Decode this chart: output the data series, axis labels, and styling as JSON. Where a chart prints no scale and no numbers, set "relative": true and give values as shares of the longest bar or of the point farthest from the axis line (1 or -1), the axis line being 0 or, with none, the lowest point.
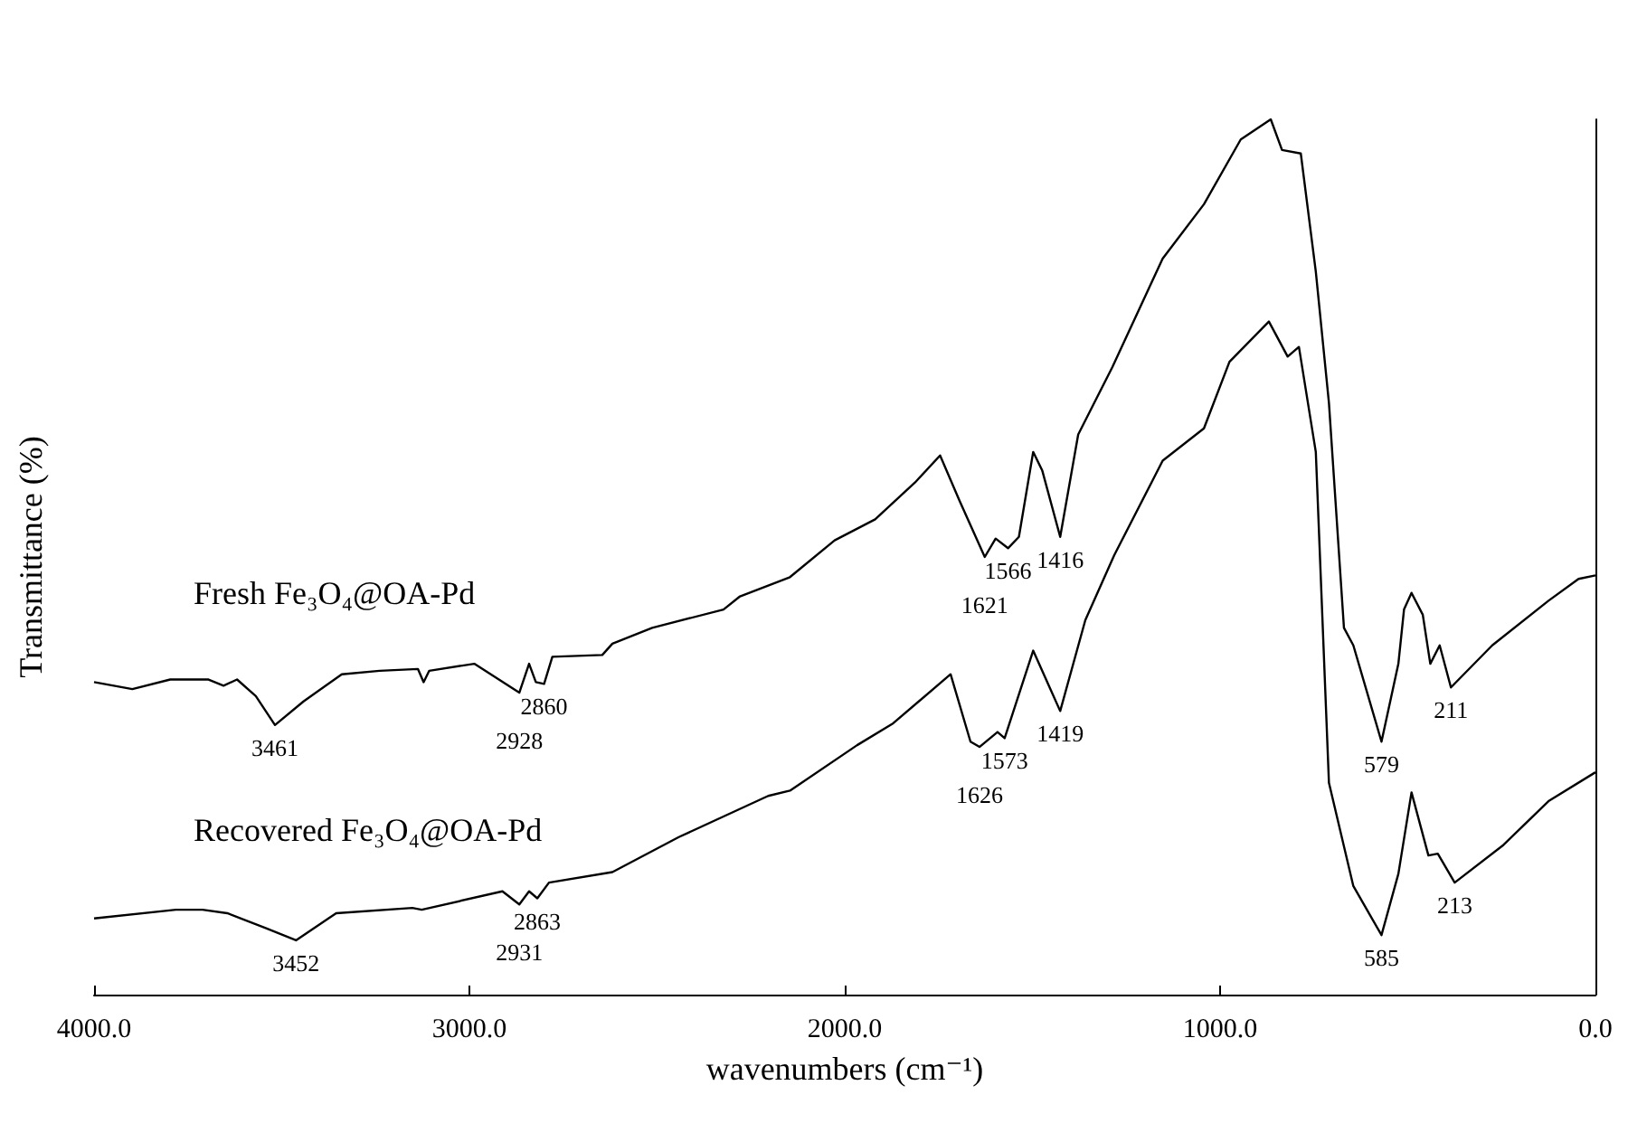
{
  "chart_data": {
    "type": "line",
    "relative": true,
    "xlabel": "wavenumbers (cm⁻¹)",
    "ylabel": "Transmittance (%)",
    "xlim": [
      4000,
      0
    ],
    "xticks": [
      {
        "value": 4000,
        "label": "4000.0"
      },
      {
        "value": 3000,
        "label": "3000.0"
      },
      {
        "value": 2000,
        "label": "2000.0"
      },
      {
        "value": 1000,
        "label": "1000.0"
      },
      {
        "value": 0,
        "label": "0.0"
      }
    ],
    "series": [
      {
        "name": "Fresh Fe₃O₄@OA-Pd",
        "color": "#000000",
        "x": [
          4000,
          3898,
          3797,
          3695,
          3655,
          3619,
          3569,
          3518,
          3442,
          3340,
          3239,
          3137,
          3122,
          3107,
          2987,
          2867,
          2841,
          2823,
          2801,
          2779,
          2646,
          2619,
          2513,
          2323,
          2279,
          2146,
          2027,
          1919,
          1813,
          1746,
          1694,
          1627,
          1598,
          1565,
          1536,
          1498,
          1474,
          1426,
          1378,
          1287,
          1153,
          1043,
          945,
          865,
          835,
          785,
          745,
          710,
          670,
          645,
          570,
          525,
          510,
          490,
          460,
          440,
          415,
          385,
          275,
          125,
          45,
          0
        ],
        "values": [
          0.357,
          0.349,
          0.36,
          0.36,
          0.353,
          0.36,
          0.341,
          0.308,
          0.335,
          0.366,
          0.37,
          0.372,
          0.357,
          0.37,
          0.378,
          0.345,
          0.378,
          0.357,
          0.355,
          0.386,
          0.388,
          0.401,
          0.419,
          0.44,
          0.455,
          0.477,
          0.519,
          0.543,
          0.585,
          0.616,
          0.564,
          0.5,
          0.521,
          0.51,
          0.523,
          0.62,
          0.599,
          0.523,
          0.64,
          0.717,
          0.841,
          0.903,
          0.977,
          1,
          0.965,
          0.961,
          0.826,
          0.676,
          0.419,
          0.399,
          0.289,
          0.378,
          0.44,
          0.459,
          0.434,
          0.378,
          0.399,
          0.351,
          0.399,
          0.45,
          0.475,
          0.479
        ]
      },
      {
        "name": "Recovered Fe₃O₄@OA-Pd",
        "color": "#000000",
        "x": [
          4000,
          3782,
          3711,
          3645,
          3543,
          3462,
          3355,
          3152,
          3127,
          2912,
          2867,
          2841,
          2819,
          2788,
          2619,
          2442,
          2204,
          2146,
          1967,
          1871,
          1718,
          1665,
          1641,
          1593,
          1574,
          1498,
          1426,
          1359,
          1282,
          1153,
          1043,
          975,
          870,
          820,
          790,
          745,
          710,
          645,
          570,
          525,
          490,
          445,
          420,
          375,
          245,
          125,
          0
        ],
        "values": [
          0.087,
          0.097,
          0.097,
          0.093,
          0.076,
          0.062,
          0.093,
          0.099,
          0.097,
          0.118,
          0.103,
          0.118,
          0.11,
          0.128,
          0.14,
          0.18,
          0.227,
          0.233,
          0.285,
          0.31,
          0.366,
          0.289,
          0.283,
          0.3,
          0.293,
          0.393,
          0.324,
          0.428,
          0.502,
          0.61,
          0.647,
          0.723,
          0.769,
          0.729,
          0.74,
          0.62,
          0.242,
          0.124,
          0.068,
          0.138,
          0.231,
          0.159,
          0.161,
          0.128,
          0.171,
          0.221,
          0.254
        ]
      }
    ],
    "annotations": [
      {
        "text": "3461",
        "x": 3518,
        "y": 0.308
      },
      {
        "text": "2928",
        "x": 2867,
        "y": 0.345
      },
      {
        "text": "2860",
        "x": 2801,
        "y": 0.355
      },
      {
        "text": "1621",
        "x": 1627,
        "y": 0.5
      },
      {
        "text": "1566",
        "x": 1565,
        "y": 0.51
      },
      {
        "text": "1416",
        "x": 1426,
        "y": 0.523
      },
      {
        "text": "579",
        "x": 570,
        "y": 0.289
      },
      {
        "text": "211",
        "x": 385,
        "y": 0.351
      },
      {
        "text": "3452",
        "x": 3462,
        "y": 0.062
      },
      {
        "text": "2931",
        "x": 2867,
        "y": 0.103
      },
      {
        "text": "2863",
        "x": 2819,
        "y": 0.11
      },
      {
        "text": "1626",
        "x": 1641,
        "y": 0.283
      },
      {
        "text": "1573",
        "x": 1574,
        "y": 0.293
      },
      {
        "text": "1419",
        "x": 1426,
        "y": 0.324
      },
      {
        "text": "585",
        "x": 570,
        "y": 0.068
      },
      {
        "text": "213",
        "x": 375,
        "y": 0.128
      }
    ]
  }
}
